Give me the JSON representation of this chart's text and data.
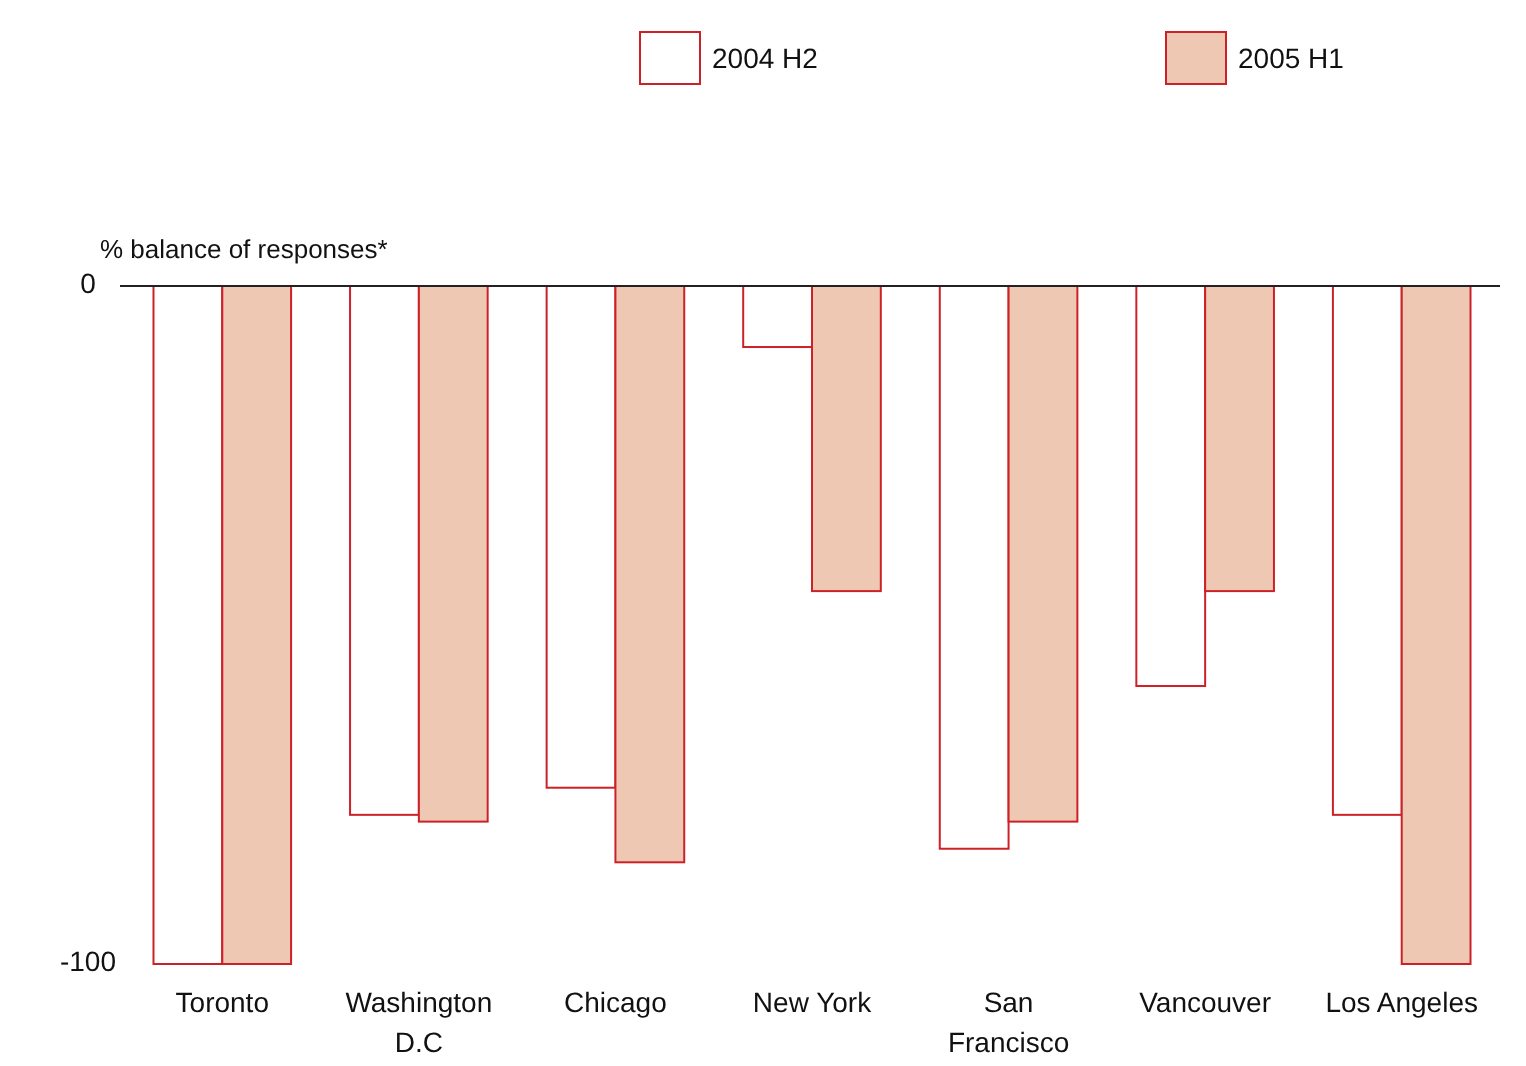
{
  "chart_data": {
    "type": "bar",
    "ylabel": "% balance of responses*",
    "categories": [
      "Toronto",
      "Washington D.C",
      "Chicago",
      "New York",
      "San Francisco",
      "Vancouver",
      "Los Angeles"
    ],
    "series": [
      {
        "name": "2004 H2",
        "color": "#ffffff",
        "values": [
          -100,
          -78,
          -74,
          -9,
          -83,
          -59,
          -78
        ]
      },
      {
        "name": "2005 H1",
        "color": "#efc8b4",
        "values": [
          -100,
          -79,
          -85,
          -45,
          -79,
          -45,
          -100
        ]
      }
    ],
    "ylim": [
      -100,
      0
    ],
    "yticks": [
      -100,
      0
    ],
    "grid": false,
    "legend": "top"
  }
}
